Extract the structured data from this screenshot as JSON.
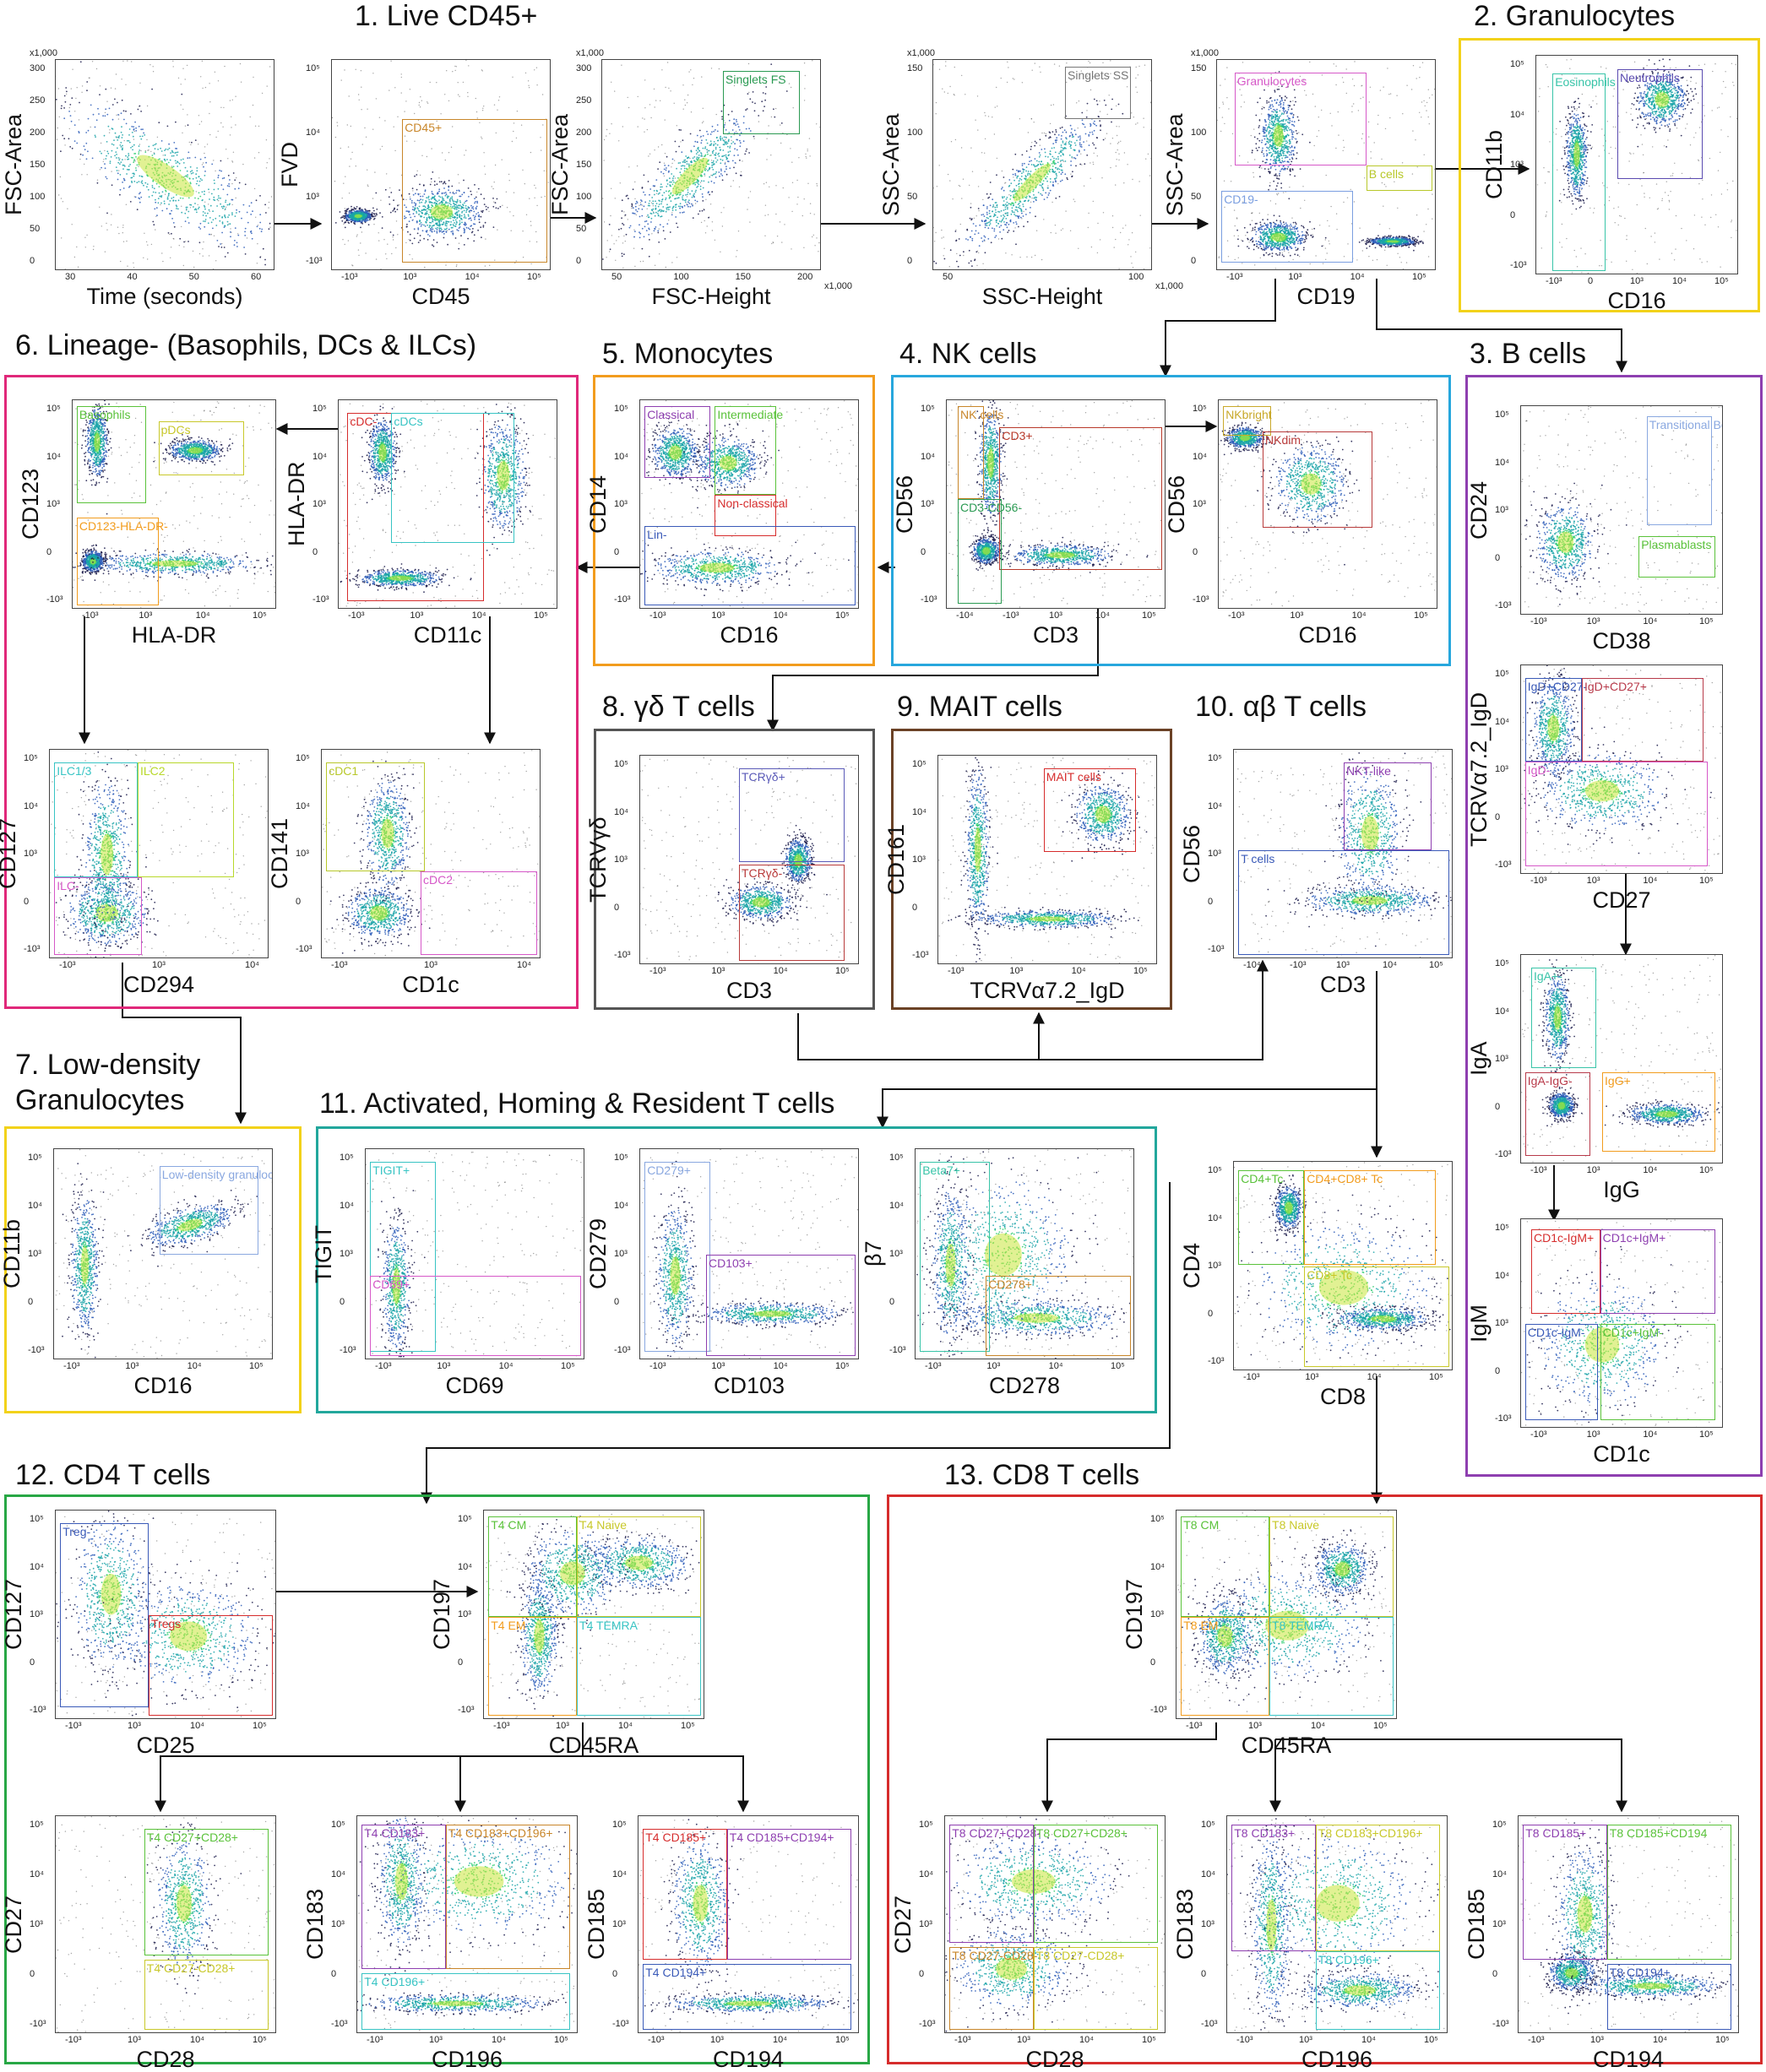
{
  "sections": [
    {
      "id": "s1",
      "title": "1. Live CD45+",
      "color": ""
    },
    {
      "id": "s2",
      "title": "2. Granulocytes",
      "color": "#f2d21a"
    },
    {
      "id": "s3",
      "title": "3. B cells",
      "color": "#8e3fb0"
    },
    {
      "id": "s4",
      "title": "4. NK cells",
      "color": "#27a7dd"
    },
    {
      "id": "s5",
      "title": "5. Monocytes",
      "color": "#f29c1d"
    },
    {
      "id": "s6",
      "title": "6. Lineage- (Basophils, DCs & ILCs)",
      "color": "#e0287a"
    },
    {
      "id": "s7",
      "title": "7. Low-density Granulocytes",
      "title_lines": [
        "7. Low-density",
        "Granulocytes"
      ],
      "color": "#f2d21a"
    },
    {
      "id": "s8",
      "title": "8. γδ T cells",
      "color": "#555555"
    },
    {
      "id": "s9",
      "title": "9. MAIT cells",
      "color": "#6b4226"
    },
    {
      "id": "s10",
      "title": "10. αβ T cells",
      "color": ""
    },
    {
      "id": "s11",
      "title": "11. Activated, Homing & Resident T cells",
      "color": "#22a79c"
    },
    {
      "id": "s12",
      "title": "12. CD4 T cells",
      "color": "#28a745"
    },
    {
      "id": "s13",
      "title": "13. CD8 T cells",
      "color": "#d62c2c"
    }
  ],
  "plots": {
    "time": {
      "x": "Time (seconds)",
      "y": "FSC-Area",
      "xticks": [
        "30",
        "40",
        "50",
        "60"
      ],
      "yticks": [
        "300",
        "250",
        "200",
        "150",
        "100",
        "50",
        "0"
      ],
      "ymult": "x1,000",
      "gates": []
    },
    "fvd": {
      "x": "CD45",
      "y": "FVD",
      "xticks": [
        "-10³",
        "10³",
        "10⁴",
        "10⁵"
      ],
      "yticks": [
        "10⁵",
        "10⁴",
        "10³",
        "-10³"
      ],
      "gates": [
        {
          "label": "CD45+",
          "color": "#c8862a"
        }
      ]
    },
    "fsc": {
      "x": "FSC-Height",
      "y": "FSC-Area",
      "xticks": [
        "50",
        "100",
        "150",
        "200"
      ],
      "yticks": [
        "300",
        "250",
        "200",
        "150",
        "100",
        "50",
        "0"
      ],
      "ymult": "x1,000",
      "xmult": "x1,000",
      "gates": [
        {
          "label": "Singlets FS",
          "color": "#2a9a52"
        }
      ]
    },
    "ssc": {
      "x": "SSC-Height",
      "y": "SSC-Area",
      "xticks": [
        "50",
        "100"
      ],
      "yticks": [
        "150",
        "100",
        "50",
        "0"
      ],
      "ymult": "x1,000",
      "xmult": "x1,000",
      "gates": [
        {
          "label": "Singlets SS",
          "color": "#777777"
        }
      ]
    },
    "cd19": {
      "x": "CD19",
      "y": "SSC-Area",
      "xticks": [
        "-10³",
        "10³",
        "10⁴",
        "10⁵"
      ],
      "yticks": [
        "150",
        "100",
        "50",
        "0"
      ],
      "ymult": "x1,000",
      "gates": [
        {
          "label": "Granulocytes",
          "color": "#d658c8"
        },
        {
          "label": "B cells",
          "color": "#b8c82a"
        },
        {
          "label": "CD19-",
          "color": "#7a9ee0"
        }
      ]
    },
    "gran": {
      "x": "CD16",
      "y": "CD11b",
      "xticks": [
        "-10³",
        "0",
        "10³",
        "10⁴",
        "10⁵"
      ],
      "yticks": [
        "10⁵",
        "10⁴",
        "10³",
        "0",
        "-10³"
      ],
      "gates": [
        {
          "label": "Eosinophils",
          "color": "#38c4a8"
        },
        {
          "label": "Neutrophils",
          "color": "#5a4ab0"
        }
      ]
    },
    "bc1": {
      "x": "CD38",
      "y": "CD24",
      "xticks": [
        "-10³",
        "10³",
        "10⁴",
        "10⁵"
      ],
      "yticks": [
        "10⁵",
        "10⁴",
        "10³",
        "0",
        "-10³"
      ],
      "gates": [
        {
          "label": "Transitional Bc",
          "color": "#8aa8e0"
        },
        {
          "label": "Plasmablasts",
          "color": "#5ac23a"
        }
      ]
    },
    "bc2": {
      "x": "CD27",
      "y": "TCRVα7.2_IgD",
      "xticks": [
        "-10³",
        "10³",
        "10⁴",
        "10⁵"
      ],
      "yticks": [
        "10⁵",
        "10⁴",
        "10³",
        "0",
        "-10³"
      ],
      "gates": [
        {
          "label": "IgD+CD27-",
          "color": "#3a5ab8"
        },
        {
          "label": "IgD+CD27+",
          "color": "#b83a4a"
        },
        {
          "label": "IgD-",
          "color": "#d658c8"
        }
      ]
    },
    "bc3": {
      "x": "IgG",
      "y": "IgA",
      "xticks": [
        "-10³",
        "10³",
        "10⁴",
        "10⁵"
      ],
      "yticks": [
        "10⁵",
        "10⁴",
        "10³",
        "0",
        "-10³"
      ],
      "gates": [
        {
          "label": "IgA+-",
          "color": "#38c4a8"
        },
        {
          "label": "IgG+",
          "color": "#f29c1d"
        },
        {
          "label": "IgA-IgG-",
          "color": "#b83a4a"
        }
      ]
    },
    "bc4": {
      "x": "CD1c",
      "y": "IgM",
      "xticks": [
        "-10³",
        "10³",
        "10⁴",
        "10⁵"
      ],
      "yticks": [
        "10⁵",
        "10⁴",
        "10³",
        "0",
        "-10³"
      ],
      "gates": [
        {
          "label": "CD1c-IgM+",
          "color": "#d62c2c"
        },
        {
          "label": "CD1c+IgM+",
          "color": "#8e3fb0"
        },
        {
          "label": "CD1c-IgM-",
          "color": "#3a5ab8"
        },
        {
          "label": "CD1c+IgM-",
          "color": "#5ac23a"
        }
      ]
    },
    "nk1": {
      "x": "CD3",
      "y": "CD56",
      "xticks": [
        "-10⁴",
        "-10³",
        "10³",
        "10⁴",
        "10⁵"
      ],
      "yticks": [
        "10⁵",
        "10⁴",
        "10³",
        "0",
        "-10³"
      ],
      "gates": [
        {
          "label": "NK cells",
          "color": "#c8862a"
        },
        {
          "label": "CD3+",
          "color": "#b83a2a"
        },
        {
          "label": "CD3-CD56-",
          "color": "#2a9a52"
        }
      ]
    },
    "nk2": {
      "x": "CD16",
      "y": "CD56",
      "xticks": [
        "-10³",
        "10³",
        "10⁴",
        "10⁵"
      ],
      "yticks": [
        "10⁵",
        "10⁴",
        "10³",
        "0",
        "-10³"
      ],
      "gates": [
        {
          "label": "NKbright",
          "color": "#c8a82a"
        },
        {
          "label": "NKdim",
          "color": "#b83a3a"
        }
      ]
    },
    "mono": {
      "x": "CD16",
      "y": "CD14",
      "xticks": [
        "-10³",
        "10³",
        "10⁴",
        "10⁵"
      ],
      "yticks": [
        "10⁵",
        "10⁴",
        "10³",
        "0",
        "-10³"
      ],
      "gates": [
        {
          "label": "Classical",
          "color": "#8e3fb0"
        },
        {
          "label": "Intermediate",
          "color": "#5ac23a"
        },
        {
          "label": "Non-classical",
          "color": "#d62c2c"
        },
        {
          "label": "Lin-",
          "color": "#3a5ab8"
        }
      ]
    },
    "lin1": {
      "x": "CD11c",
      "y": "HLA-DR",
      "xticks": [
        "-10³",
        "10³",
        "10⁴",
        "10⁵"
      ],
      "yticks": [
        "10⁵",
        "10⁴",
        "10³",
        "0",
        "-10³"
      ],
      "gates": [
        {
          "label": "cDC-",
          "color": "#d62c2c"
        },
        {
          "label": "cDCs",
          "color": "#38c4c4"
        }
      ]
    },
    "lin2": {
      "x": "HLA-DR",
      "y": "CD123",
      "xticks": [
        "-10³",
        "10³",
        "10⁴",
        "10⁵"
      ],
      "yticks": [
        "10⁵",
        "10⁴",
        "10³",
        "0",
        "-10³"
      ],
      "gates": [
        {
          "label": "Basophils",
          "color": "#5ac23a"
        },
        {
          "label": "pDCs",
          "color": "#c8c82a"
        },
        {
          "label": "CD123-HLA-DR-",
          "color": "#f29c1d"
        }
      ]
    },
    "lin3": {
      "x": "CD294",
      "y": "CD127",
      "xticks": [
        "-10³",
        "10³",
        "10⁴"
      ],
      "yticks": [
        "10⁵",
        "10⁴",
        "10³",
        "0",
        "-10³"
      ],
      "gates": [
        {
          "label": "ILC1/3",
          "color": "#38c4c4"
        },
        {
          "label": "ILC2",
          "color": "#b8d82a"
        },
        {
          "label": "ILC-",
          "color": "#d658c8"
        }
      ]
    },
    "lin4": {
      "x": "CD1c",
      "y": "CD141",
      "xticks": [
        "-10³",
        "10³",
        "10⁴"
      ],
      "yticks": [
        "10⁵",
        "10⁴",
        "10³",
        "0",
        "-10³"
      ],
      "gates": [
        {
          "label": "cDC1",
          "color": "#b8c82a"
        },
        {
          "label": "cDC2",
          "color": "#d658c8"
        }
      ]
    },
    "ldg": {
      "x": "CD16",
      "y": "CD11b",
      "xticks": [
        "-10³",
        "10³",
        "10⁴",
        "10⁵"
      ],
      "yticks": [
        "10⁵",
        "10⁴",
        "10³",
        "0",
        "-10³"
      ],
      "gates": [
        {
          "label": "Low-density granulocytes",
          "color": "#8aa8e0"
        }
      ]
    },
    "gd": {
      "x": "CD3",
      "y": "TCRVγδ",
      "xticks": [
        "-10³",
        "10³",
        "10⁴",
        "10⁵"
      ],
      "yticks": [
        "10⁵",
        "10⁴",
        "10³",
        "0",
        "-10³"
      ],
      "gates": [
        {
          "label": "TCRγδ+",
          "color": "#5a5ab8"
        },
        {
          "label": "TCRγδ-",
          "color": "#b83a3a"
        }
      ]
    },
    "mait": {
      "x": "TCRVα7.2_IgD",
      "y": "CD161",
      "xticks": [
        "-10³",
        "10³",
        "10⁴",
        "10⁵"
      ],
      "yticks": [
        "10⁵",
        "10⁴",
        "10³",
        "0",
        "-10³"
      ],
      "gates": [
        {
          "label": "MAIT cells",
          "color": "#d62c2c"
        }
      ]
    },
    "ab": {
      "x": "CD3",
      "y": "CD56",
      "xticks": [
        "-10⁴",
        "-10³",
        "10³",
        "10⁴",
        "10⁵"
      ],
      "yticks": [
        "10⁵",
        "10⁴",
        "10³",
        "0",
        "-10³"
      ],
      "gates": [
        {
          "label": "NKT-like",
          "color": "#8e3fb0"
        },
        {
          "label": "T cells",
          "color": "#3a5ab8"
        }
      ]
    },
    "act1": {
      "x": "CD69",
      "y": "TIGIT",
      "xticks": [
        "-10³",
        "10³",
        "10⁴",
        "10⁵"
      ],
      "yticks": [
        "10⁵",
        "10⁴",
        "10³",
        "0",
        "-10³"
      ],
      "gates": [
        {
          "label": "TIGIT+",
          "color": "#38c4c4"
        },
        {
          "label": "CD69+",
          "color": "#d658c8"
        }
      ]
    },
    "act2": {
      "x": "CD103",
      "y": "CD279",
      "xticks": [
        "-10³",
        "10³",
        "10⁴",
        "10⁵"
      ],
      "yticks": [
        "10⁵",
        "10⁴",
        "10³",
        "0",
        "-10³"
      ],
      "gates": [
        {
          "label": "CD279+",
          "color": "#8aa8e0"
        },
        {
          "label": "CD103+",
          "color": "#8e3fb0"
        }
      ]
    },
    "act3": {
      "x": "CD278",
      "y": "β7",
      "xticks": [
        "-10³",
        "10³",
        "10⁴",
        "10⁵"
      ],
      "yticks": [
        "10⁵",
        "10⁴",
        "10³",
        "0",
        "-10³"
      ],
      "gates": [
        {
          "label": "Beta7+",
          "color": "#38c4a8"
        },
        {
          "label": "CD278+",
          "color": "#c8862a"
        }
      ]
    },
    "cd4cd8": {
      "x": "CD8",
      "y": "CD4",
      "xticks": [
        "-10³",
        "10³",
        "10⁴",
        "10⁵"
      ],
      "yticks": [
        "10⁵",
        "10⁴",
        "10³",
        "0",
        "-10³"
      ],
      "gates": [
        {
          "label": "CD4+Tc",
          "color": "#5ac23a"
        },
        {
          "label": "CD4+CD8+ Tc",
          "color": "#f29c1d"
        },
        {
          "label": "CD8+ Tc",
          "color": "#c8c82a"
        }
      ]
    },
    "c4a": {
      "x": "CD25",
      "y": "CD127",
      "xticks": [
        "-10³",
        "10³",
        "10⁴",
        "10⁵"
      ],
      "yticks": [
        "10⁵",
        "10⁴",
        "10³",
        "0",
        "-10³"
      ],
      "gates": [
        {
          "label": "Treg-",
          "color": "#3a5ab8"
        },
        {
          "label": "Tregs",
          "color": "#d62c2c"
        }
      ]
    },
    "c4b": {
      "x": "CD45RA",
      "y": "CD197",
      "xticks": [
        "-10³",
        "10³",
        "10⁴",
        "10⁵"
      ],
      "yticks": [
        "10⁵",
        "10⁴",
        "10³",
        "0",
        "-10³"
      ],
      "gates": [
        {
          "label": "T4 CM",
          "color": "#5ac23a"
        },
        {
          "label": "T4 Naive",
          "color": "#c8c82a"
        },
        {
          "label": "T4 EM",
          "color": "#f29c1d"
        },
        {
          "label": "T4 TEMRA",
          "color": "#38c4c4"
        }
      ]
    },
    "c4c": {
      "x": "CD28",
      "y": "CD27",
      "xticks": [
        "-10³",
        "10³",
        "10⁴",
        "10⁵"
      ],
      "yticks": [
        "10⁵",
        "10⁴",
        "10³",
        "0",
        "-10³"
      ],
      "gates": [
        {
          "label": "T4 CD27+CD28+",
          "color": "#5ac23a"
        },
        {
          "label": "T4 CD27-CD28+",
          "color": "#c8c82a"
        }
      ]
    },
    "c4d": {
      "x": "CD196",
      "y": "CD183",
      "xticks": [
        "-10³",
        "10³",
        "10⁴",
        "10⁵"
      ],
      "yticks": [
        "10⁵",
        "10⁴",
        "10³",
        "0",
        "-10³"
      ],
      "gates": [
        {
          "label": "T4 CD183+",
          "color": "#8e3fb0"
        },
        {
          "label": "T4 CD183+CD196+",
          "color": "#c8862a"
        },
        {
          "label": "T4 CD196+",
          "color": "#38c4c4"
        }
      ]
    },
    "c4e": {
      "x": "CD194",
      "y": "CD185",
      "xticks": [
        "-10³",
        "10³",
        "10⁴",
        "10⁵"
      ],
      "yticks": [
        "10⁵",
        "10⁴",
        "10³",
        "0",
        "-10³"
      ],
      "gates": [
        {
          "label": "T4 CD185+",
          "color": "#d62c2c"
        },
        {
          "label": "T4 CD185+CD194+",
          "color": "#8e3fb0"
        },
        {
          "label": "T4 CD194+",
          "color": "#3a5ab8"
        }
      ]
    },
    "c8a": {
      "x": "CD45RA",
      "y": "CD197",
      "xticks": [
        "-10³",
        "10³",
        "10⁴",
        "10⁵"
      ],
      "yticks": [
        "10⁵",
        "10⁴",
        "10³",
        "0",
        "-10³"
      ],
      "gates": [
        {
          "label": "T8 CM",
          "color": "#5ac23a"
        },
        {
          "label": "T8 Naive",
          "color": "#c8c82a"
        },
        {
          "label": "T8 EM",
          "color": "#f29c1d"
        },
        {
          "label": "T8 TEMRA",
          "color": "#38c4c4"
        }
      ]
    },
    "c8b": {
      "x": "CD28",
      "y": "CD27",
      "xticks": [
        "-10³",
        "10³",
        "10⁴",
        "10⁵"
      ],
      "yticks": [
        "10⁵",
        "10⁴",
        "10³",
        "0",
        "-10³"
      ],
      "gates": [
        {
          "label": "T8 CD27+CD28-",
          "color": "#8e3fb0"
        },
        {
          "label": "T8 CD27+CD28+",
          "color": "#5ac23a"
        },
        {
          "label": "T8 CD27-CD28-",
          "color": "#c8862a"
        },
        {
          "label": "T8 CD27-CD28+",
          "color": "#c8c82a"
        }
      ]
    },
    "c8c": {
      "x": "CD196",
      "y": "CD183",
      "xticks": [
        "-10³",
        "10³",
        "10⁴",
        "10⁵"
      ],
      "yticks": [
        "10⁵",
        "10⁴",
        "10³",
        "0",
        "-10³"
      ],
      "gates": [
        {
          "label": "T8 CD183+",
          "color": "#8e3fb0"
        },
        {
          "label": "T8 CD183+CD196+",
          "color": "#c8c82a"
        },
        {
          "label": "T8 CD196+",
          "color": "#38c4c4"
        }
      ]
    },
    "c8d": {
      "x": "CD194",
      "y": "CD185",
      "xticks": [
        "-10³",
        "10³",
        "10⁴",
        "10⁵"
      ],
      "yticks": [
        "10⁵",
        "10⁴",
        "10³",
        "0",
        "-10³"
      ],
      "gates": [
        {
          "label": "T8 CD185+",
          "color": "#8e3fb0"
        },
        {
          "label": "T8 CD185+CD194",
          "color": "#5ac23a"
        },
        {
          "label": "T8 CD194+",
          "color": "#3a5ab8"
        }
      ]
    }
  }
}
